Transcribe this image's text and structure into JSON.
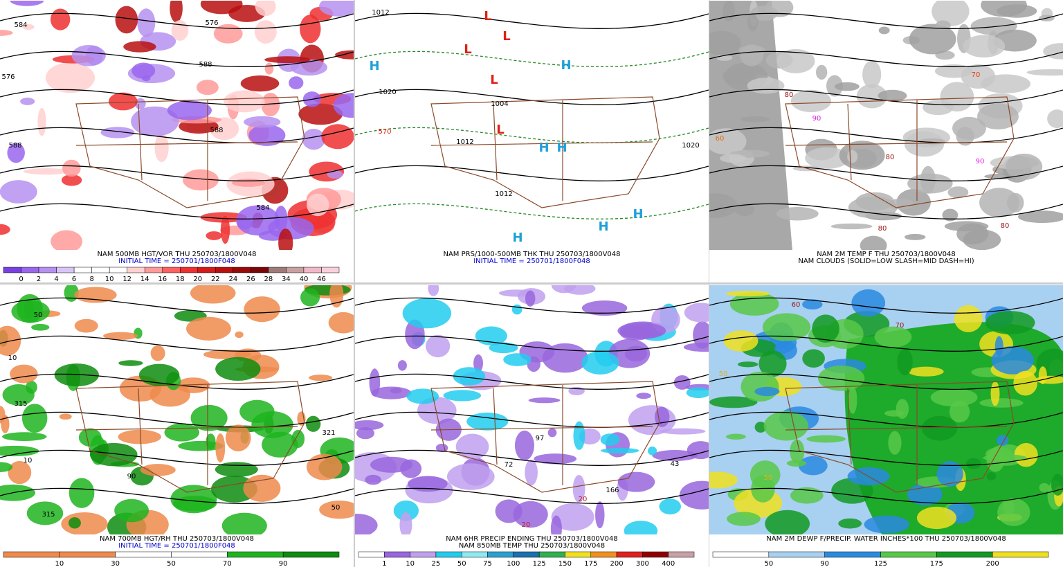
{
  "panels": [
    {
      "captions": [
        {
          "text": "NAM 500MB HGT/VOR THU 250703/1800V048",
          "color": "#000000"
        },
        {
          "text": "INITIAL TIME = 250701/1800F048",
          "color": "#0000cc"
        }
      ],
      "colorbar": {
        "labels": [
          "0",
          "2",
          "4",
          "6",
          "8",
          "10",
          "12",
          "14",
          "16",
          "18",
          "20",
          "22",
          "24",
          "26",
          "28",
          "34",
          "40",
          "46"
        ],
        "colors": [
          "#7b3fe0",
          "#9966ee",
          "#b690f0",
          "#d8c4f6",
          "#ffffff",
          "#ffffff",
          "#ffffff",
          "#ffd0d0",
          "#ff9a9a",
          "#ff6060",
          "#ee3030",
          "#d41a1a",
          "#b80f0f",
          "#990a0a",
          "#7a0606",
          "#a07a7a",
          "#c8a0a0",
          "#f0b8c8",
          "#f8d0dc"
        ]
      },
      "map_labels": [
        {
          "text": "584",
          "color": "#000000"
        },
        {
          "text": "576",
          "color": "#000000"
        },
        {
          "text": "588",
          "color": "#000000"
        },
        {
          "text": "576",
          "color": "#000000"
        },
        {
          "text": "588",
          "color": "#000000"
        },
        {
          "text": "588",
          "color": "#000000"
        },
        {
          "text": "584",
          "color": "#000000"
        }
      ]
    },
    {
      "captions": [
        {
          "text": "NAM PRS/1000-500MB THK THU 250703/1800V048",
          "color": "#000000"
        },
        {
          "text": "INITIAL TIME = 250701/1800F048",
          "color": "#0000cc"
        }
      ],
      "map_labels": [
        {
          "text": "1012",
          "color": "#000000"
        },
        {
          "text": "L",
          "color": "#e02010"
        },
        {
          "text": "L",
          "color": "#e02010"
        },
        {
          "text": "H",
          "color": "#1ea0dc"
        },
        {
          "text": "1020",
          "color": "#000000"
        },
        {
          "text": "L",
          "color": "#e02010"
        },
        {
          "text": "1004",
          "color": "#000000"
        },
        {
          "text": "L",
          "color": "#e02010"
        },
        {
          "text": "H",
          "color": "#1ea0dc"
        },
        {
          "text": "H",
          "color": "#1ea0dc"
        },
        {
          "text": "1012",
          "color": "#000000"
        },
        {
          "text": "L",
          "color": "#e02010"
        },
        {
          "text": "H",
          "color": "#1ea0dc"
        },
        {
          "text": "1020",
          "color": "#000000"
        },
        {
          "text": "H",
          "color": "#1ea0dc"
        },
        {
          "text": "H",
          "color": "#1ea0dc"
        },
        {
          "text": "H",
          "color": "#1ea0dc"
        },
        {
          "text": "1012",
          "color": "#000000"
        },
        {
          "text": "570",
          "color": "#e02010"
        }
      ]
    },
    {
      "captions": [
        {
          "text": "NAM 2M TEMP F THU 250703/1800V048",
          "color": "#000000"
        },
        {
          "text": "NAM CLOUDS (SOLID=LOW SLASH=MID DASH=HI)",
          "color": "#000000"
        }
      ],
      "map_labels": [
        {
          "text": "80",
          "color": "#a01818"
        },
        {
          "text": "90",
          "color": "#e020e0"
        },
        {
          "text": "80",
          "color": "#a01818"
        },
        {
          "text": "70",
          "color": "#e04010"
        },
        {
          "text": "90",
          "color": "#e020e0"
        },
        {
          "text": "80",
          "color": "#a01818"
        },
        {
          "text": "60",
          "color": "#e07010"
        },
        {
          "text": "80",
          "color": "#a01818"
        }
      ]
    },
    {
      "captions": [
        {
          "text": "NAM 700MB HGT/RH THU 250703/1800V048",
          "color": "#000000"
        },
        {
          "text": "INITIAL TIME = 250701/1800F048",
          "color": "#0000cc"
        }
      ],
      "colorbar": {
        "labels": [
          "10",
          "30",
          "50",
          "70",
          "90"
        ],
        "colors": [
          "#ef8a4c",
          "#ef8a4c",
          "#ffffff",
          "#ffffff",
          "#1eb41e",
          "#0e8c0e"
        ]
      },
      "map_labels": [
        {
          "text": "50",
          "color": "#000000"
        },
        {
          "text": "10",
          "color": "#000000"
        },
        {
          "text": "315",
          "color": "#000000"
        },
        {
          "text": "90",
          "color": "#000000"
        },
        {
          "text": "50",
          "color": "#000000"
        },
        {
          "text": "321",
          "color": "#000000"
        },
        {
          "text": "10",
          "color": "#000000"
        },
        {
          "text": "315",
          "color": "#000000"
        }
      ]
    },
    {
      "captions": [
        {
          "text": "NAM 6HR PRECIP ENDING THU 250703/1800V048",
          "color": "#000000"
        },
        {
          "text": "NAM 850MB TEMP THU 250703/1800V048",
          "color": "#000000"
        }
      ],
      "colorbar": {
        "labels": [
          "1",
          "10",
          "25",
          "50",
          "75",
          "100",
          "125",
          "150",
          "175",
          "200",
          "300",
          "400"
        ],
        "colors": [
          "#ffffff",
          "#9966dd",
          "#c0a0ee",
          "#22ccee",
          "#90e8f0",
          "#2a9fd0",
          "#1a70b0",
          "#30b050",
          "#f0e020",
          "#f09020",
          "#e02020",
          "#900000",
          "#c8a0a8"
        ]
      },
      "map_labels": [
        {
          "text": "97",
          "color": "#000000"
        },
        {
          "text": "72",
          "color": "#000000"
        },
        {
          "text": "20",
          "color": "#c02020"
        },
        {
          "text": "43",
          "color": "#000000"
        },
        {
          "text": "166",
          "color": "#000000"
        },
        {
          "text": "20",
          "color": "#c02020"
        }
      ]
    },
    {
      "captions": [
        {
          "text": "NAM 2M DEWP F/PRECIP. WATER INCHES*100 THU 250703/1800V048",
          "color": "#000000"
        }
      ],
      "colorbar": {
        "labels": [
          "50",
          "90",
          "125",
          "175",
          "200"
        ],
        "colors": [
          "#ffffff",
          "#a8d0f0",
          "#2a8ae0",
          "#58c848",
          "#129a22",
          "#f0e020"
        ]
      },
      "map_labels": [
        {
          "text": "50",
          "color": "#e0b020"
        },
        {
          "text": "60",
          "color": "#a01818"
        },
        {
          "text": "50",
          "color": "#e0b020"
        },
        {
          "text": "70",
          "color": "#a01818"
        }
      ]
    }
  ]
}
